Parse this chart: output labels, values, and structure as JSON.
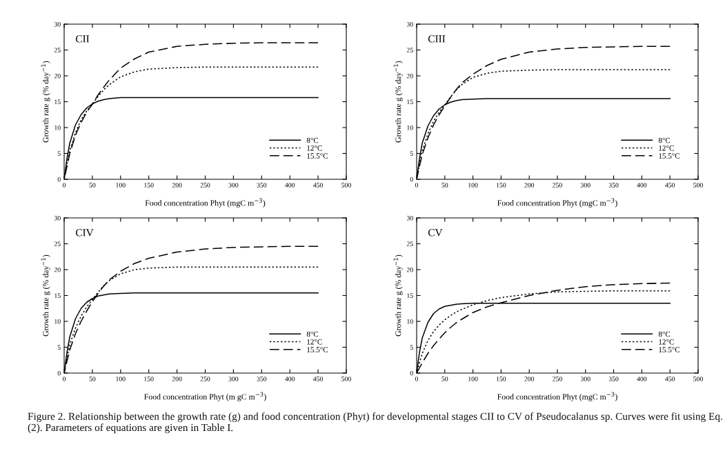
{
  "chart_data": [
    {
      "type": "line",
      "title": "CII",
      "xlabel": "Food concentration Phyt (mgC m$^{−3}$)",
      "ylabel": "Growth rate g (% day$^{−1}$)",
      "x": [
        0,
        5,
        10,
        20,
        30,
        40,
        50,
        60,
        70,
        80,
        100,
        125,
        150,
        200,
        250,
        300,
        350,
        400,
        450
      ],
      "series": [
        {
          "name": "8°C",
          "color": "#000000",
          "line_style": "solid",
          "values": [
            0,
            4,
            7,
            10.5,
            12.5,
            13.8,
            14.6,
            15.1,
            15.4,
            15.6,
            15.8,
            15.8,
            15.8,
            15.8,
            15.8,
            15.8,
            15.8,
            15.8,
            15.8
          ]
        },
        {
          "name": "12°C",
          "color": "#000000",
          "line_style": "dotted",
          "values": [
            0,
            3,
            5.5,
            9,
            11.5,
            13.2,
            14.6,
            16,
            17.3,
            18.3,
            19.8,
            20.8,
            21.3,
            21.6,
            21.7,
            21.7,
            21.7,
            21.7,
            21.7
          ]
        },
        {
          "name": "15.5°C",
          "color": "#000000",
          "line_style": "dashed",
          "values": [
            0,
            2.5,
            5,
            8.5,
            11,
            13,
            14.5,
            16.3,
            17.8,
            19.2,
            21.5,
            23.3,
            24.6,
            25.7,
            26.1,
            26.3,
            26.4,
            26.4,
            26.4
          ]
        }
      ],
      "xlim": [
        0,
        500
      ],
      "ylim": [
        0,
        30
      ],
      "xticks": [
        0,
        50,
        100,
        150,
        200,
        250,
        300,
        350,
        400,
        450,
        500
      ],
      "yticks": [
        0,
        5,
        10,
        15,
        20,
        25,
        30
      ],
      "grid": false,
      "legend": "bottom right"
    },
    {
      "type": "line",
      "title": "CIII",
      "xlabel": "Food concentration Phyt (mgC m$^{−3}$)",
      "ylabel": "Growth rate g (% day$^{−1}$)",
      "x": [
        0,
        5,
        10,
        20,
        30,
        40,
        50,
        60,
        70,
        80,
        100,
        125,
        150,
        200,
        250,
        300,
        350,
        400,
        450
      ],
      "series": [
        {
          "name": "8°C",
          "color": "#000000",
          "line_style": "solid",
          "values": [
            0,
            4,
            7,
            10.3,
            12.3,
            13.6,
            14.4,
            14.9,
            15.2,
            15.4,
            15.5,
            15.6,
            15.6,
            15.6,
            15.6,
            15.6,
            15.6,
            15.6,
            15.6
          ]
        },
        {
          "name": "12°C",
          "color": "#000000",
          "line_style": "dotted",
          "values": [
            0,
            3,
            5.5,
            8.8,
            11.2,
            13,
            14.4,
            15.9,
            17.2,
            18.3,
            19.7,
            20.5,
            20.9,
            21.1,
            21.2,
            21.2,
            21.2,
            21.2,
            21.2
          ]
        },
        {
          "name": "15.5°C",
          "color": "#000000",
          "line_style": "dashed",
          "values": [
            0,
            2.5,
            4.8,
            8,
            10.5,
            12.5,
            14.2,
            15.8,
            17.3,
            18.6,
            20.3,
            22,
            23.2,
            24.6,
            25.2,
            25.5,
            25.6,
            25.7,
            25.7
          ]
        }
      ],
      "xlim": [
        0,
        500
      ],
      "ylim": [
        0,
        30
      ],
      "xticks": [
        0,
        50,
        100,
        150,
        200,
        250,
        300,
        350,
        400,
        450,
        500
      ],
      "yticks": [
        0,
        5,
        10,
        15,
        20,
        25,
        30
      ],
      "grid": false,
      "legend": "bottom right"
    },
    {
      "type": "line",
      "title": "CIV",
      "xlabel": "Food concentration Phyt (m gC m$^{−3}$)",
      "ylabel": "Growth rate g (% day$^{−1}$)",
      "x": [
        0,
        5,
        10,
        20,
        30,
        40,
        50,
        60,
        70,
        80,
        100,
        125,
        150,
        200,
        250,
        300,
        350,
        400,
        450
      ],
      "series": [
        {
          "name": "8°C",
          "color": "#000000",
          "line_style": "solid",
          "values": [
            0,
            4,
            7,
            10.5,
            12.5,
            13.7,
            14.4,
            14.9,
            15.1,
            15.3,
            15.4,
            15.5,
            15.5,
            15.5,
            15.5,
            15.5,
            15.5,
            15.5,
            15.5
          ]
        },
        {
          "name": "12°C",
          "color": "#000000",
          "line_style": "dotted",
          "values": [
            0,
            3,
            5.5,
            8.7,
            11,
            12.8,
            14.2,
            15.6,
            16.9,
            17.9,
            19.2,
            20,
            20.3,
            20.5,
            20.5,
            20.5,
            20.5,
            20.5,
            20.5
          ]
        },
        {
          "name": "15.5°C",
          "color": "#000000",
          "line_style": "dashed",
          "values": [
            0,
            2.3,
            4.5,
            7.6,
            10,
            12,
            13.8,
            15.4,
            16.8,
            18,
            19.7,
            21.2,
            22.2,
            23.4,
            24,
            24.3,
            24.4,
            24.5,
            24.5
          ]
        }
      ],
      "xlim": [
        0,
        500
      ],
      "ylim": [
        0,
        30
      ],
      "xticks": [
        0,
        50,
        100,
        150,
        200,
        250,
        300,
        350,
        400,
        450,
        500
      ],
      "yticks": [
        0,
        5,
        10,
        15,
        20,
        25,
        30
      ],
      "grid": false,
      "legend": "bottom right"
    },
    {
      "type": "line",
      "title": "CV",
      "xlabel": "Food concentration Phyt (mgC m$^{−3}$)",
      "ylabel": "Growth rate g (% day$^{−1}$)",
      "x": [
        0,
        5,
        10,
        20,
        30,
        40,
        50,
        60,
        70,
        80,
        100,
        125,
        150,
        200,
        250,
        300,
        350,
        400,
        450
      ],
      "series": [
        {
          "name": "8°C",
          "color": "#000000",
          "line_style": "solid",
          "values": [
            0,
            4,
            6.8,
            9.8,
            11.5,
            12.4,
            12.9,
            13.1,
            13.3,
            13.4,
            13.5,
            13.5,
            13.5,
            13.5,
            13.5,
            13.5,
            13.5,
            13.5,
            13.5
          ]
        },
        {
          "name": "12°C",
          "color": "#000000",
          "line_style": "dotted",
          "values": [
            0,
            2,
            3.8,
            6.3,
            8,
            9.3,
            10.3,
            11.1,
            11.8,
            12.3,
            13.2,
            14,
            14.6,
            15.3,
            15.7,
            15.8,
            15.9,
            15.9,
            15.9
          ]
        },
        {
          "name": "15.5°C",
          "color": "#000000",
          "line_style": "dashed",
          "values": [
            0,
            1,
            2,
            3.8,
            5.3,
            6.6,
            7.8,
            8.8,
            9.7,
            10.4,
            11.7,
            12.8,
            13.6,
            15,
            16,
            16.7,
            17.1,
            17.3,
            17.4
          ]
        }
      ],
      "xlim": [
        0,
        500
      ],
      "ylim": [
        0,
        30
      ],
      "xticks": [
        0,
        50,
        100,
        150,
        200,
        250,
        300,
        350,
        400,
        450,
        500
      ],
      "yticks": [
        0,
        5,
        10,
        15,
        20,
        25,
        30
      ],
      "grid": false,
      "legend": "bottom right",
      "annotations": [
        "Figure 2. Relationship between the growth rate (g) and food concentration (Phyt) for developmental stages CII to CV of Pseudocalanus sp. Curves were fit using Eq. (2). Parameters of equations are given in Table I."
      ]
    }
  ]
}
